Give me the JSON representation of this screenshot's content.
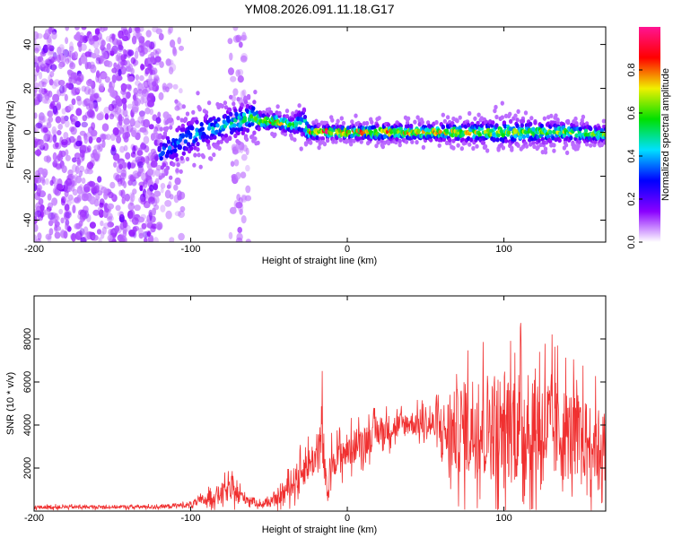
{
  "title": "YM08.2026.091.11.18.G17",
  "chart_data": [
    {
      "type": "heatmap",
      "name": "spectrogram",
      "xlabel": "Height of straight line (km)",
      "ylabel": "Frequency (Hz)",
      "xlim": [
        -200,
        165
      ],
      "ylim": [
        -50,
        48
      ],
      "xticks": [
        -200,
        -100,
        0,
        100
      ],
      "yticks": [
        -40,
        -20,
        0,
        20,
        40
      ],
      "colorbar": {
        "label": "Normalized spectral amplitude",
        "range": [
          0,
          1
        ],
        "ticks": [
          "0.0",
          "0.2",
          "0.4",
          "0.6",
          "0.8"
        ],
        "colormap": [
          "#ffffff",
          "#8a00ff",
          "#0000ff",
          "#00e0ff",
          "#00e000",
          "#f0f000",
          "#ff0000",
          "#ff1493"
        ]
      },
      "noise_regions": [
        {
          "x": [
            -200,
            -120
          ],
          "density": 1.0,
          "amplitude": 0.12
        },
        {
          "x": [
            -120,
            -105
          ],
          "density": 0.35,
          "amplitude": 0.06
        },
        {
          "x": [
            -75,
            -63
          ],
          "density": 0.45,
          "amplitude": 0.06
        }
      ],
      "ridge": {
        "x": [
          -120,
          -110,
          -100,
          -90,
          -80,
          -70,
          -60,
          -55,
          -45,
          -35,
          -28,
          -25,
          -15,
          0,
          20,
          50,
          80,
          100,
          120,
          140,
          165
        ],
        "freq": [
          -10,
          -6,
          -2,
          1,
          3,
          5,
          7,
          5,
          5,
          3,
          5,
          0,
          0,
          0,
          0,
          0,
          0,
          0,
          0,
          0,
          -1
        ],
        "amplitude": [
          0.25,
          0.3,
          0.35,
          0.35,
          0.4,
          0.4,
          0.5,
          0.7,
          0.75,
          0.55,
          0.4,
          0.7,
          0.9,
          0.85,
          0.75,
          0.7,
          0.65,
          0.6,
          0.55,
          0.6,
          0.55
        ],
        "width_hz": [
          6,
          7,
          7,
          6,
          6,
          6,
          6,
          3,
          3,
          3,
          6,
          3,
          2.5,
          2.5,
          3,
          3,
          3.5,
          4.5,
          4,
          3.5,
          3
        ]
      }
    },
    {
      "type": "line",
      "name": "snr",
      "xlabel": "Height of straight line (km)",
      "ylabel": "SNR (10 * v/v)",
      "xlim": [
        -200,
        165
      ],
      "ylim": [
        0,
        10000
      ],
      "xticks": [
        -200,
        -100,
        0,
        100
      ],
      "yticks": [
        2000,
        4000,
        6000,
        8000
      ],
      "color": "#f03030",
      "envelope": {
        "x": [
          -200,
          -120,
          -100,
          -85,
          -75,
          -65,
          -55,
          -45,
          -35,
          -25,
          -20,
          -16,
          -13,
          -10,
          0,
          20,
          40,
          55,
          65,
          80,
          100,
          120,
          140,
          165
        ],
        "mean": [
          180,
          200,
          300,
          700,
          1000,
          600,
          300,
          500,
          1300,
          2200,
          2500,
          3500,
          600,
          2400,
          2800,
          3700,
          4100,
          4000,
          3600,
          4000,
          4000,
          4000,
          3600,
          3000
        ],
        "spread": [
          150,
          150,
          250,
          700,
          1000,
          500,
          250,
          500,
          1200,
          1500,
          1500,
          3300,
          600,
          1400,
          1500,
          1300,
          1000,
          1400,
          3200,
          4500,
          4800,
          5200,
          4000,
          3000
        ]
      }
    }
  ]
}
